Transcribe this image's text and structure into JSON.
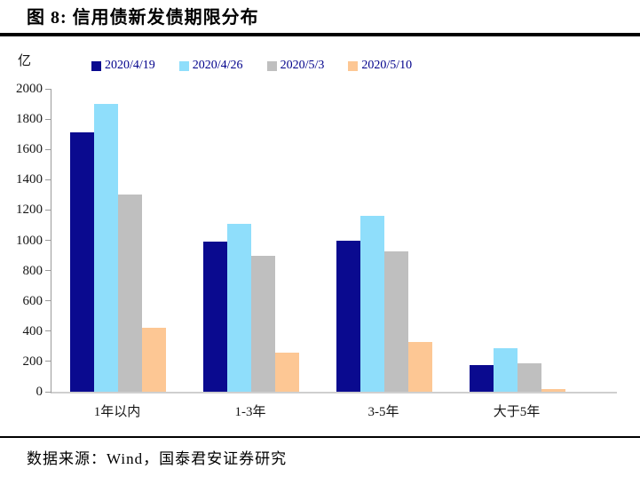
{
  "title": "图 8:  信用债新发债期限分布",
  "source": "数据来源：Wind，国泰君安证券研究",
  "colors": {
    "series_navy": "#0a0a8f",
    "series_sky": "#8fdefb",
    "series_gray": "#bfbfbf",
    "series_orange": "#fdc794",
    "legend_text": "#00008b",
    "axis_line": "#9a9a9a",
    "rule_black": "#000000"
  },
  "chart_data": {
    "type": "bar",
    "title": "图 8: 信用债新发债期限分布",
    "unit": "亿",
    "xlabel": "",
    "ylabel": "亿",
    "categories": [
      "1年以内",
      "1-3年",
      "3-5年",
      "大于5年"
    ],
    "series": [
      {
        "name": "2020/4/19",
        "color": "#0a0a8f",
        "values": [
          1710,
          990,
          1000,
          175
        ]
      },
      {
        "name": "2020/4/26",
        "color": "#8fdefb",
        "values": [
          1900,
          1110,
          1160,
          290
        ]
      },
      {
        "name": "2020/5/3",
        "color": "#bfbfbf",
        "values": [
          1300,
          895,
          925,
          190
        ]
      },
      {
        "name": "2020/5/10",
        "color": "#fdc794",
        "values": [
          425,
          260,
          330,
          20
        ]
      }
    ],
    "ylim": [
      0,
      2000
    ],
    "ytick_step": 200,
    "grid": false,
    "legend_position": "top"
  }
}
